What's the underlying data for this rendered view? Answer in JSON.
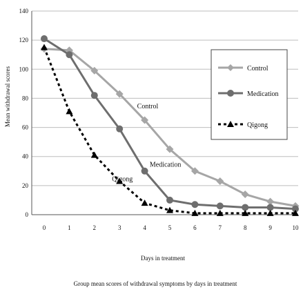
{
  "chart_data": {
    "type": "line",
    "ylabel": "Mean withdrawal scores",
    "xlabel": "Days in treatment",
    "caption": "Group mean scores of withdrawal symptoms by days in treatment",
    "x": [
      0,
      1,
      2,
      3,
      4,
      5,
      6,
      7,
      8,
      9,
      10
    ],
    "xticks": [
      "0",
      "1",
      "2",
      "3",
      "4",
      "5",
      "6",
      "7",
      "8",
      "9",
      "10"
    ],
    "yticks": [
      "0",
      "20",
      "40",
      "60",
      "80",
      "100",
      "120",
      "140"
    ],
    "ylim": [
      0,
      140
    ],
    "grid": true,
    "legend_position": "right",
    "series": [
      {
        "name": "Control",
        "color": "#a6a6a6",
        "marker": "diamond",
        "line_style": "solid",
        "values": [
          114,
          113,
          99,
          83,
          65,
          45,
          30,
          23,
          14,
          9,
          6
        ],
        "annotation": "Control"
      },
      {
        "name": "Medication",
        "color": "#6e6e6e",
        "marker": "circle",
        "line_style": "solid",
        "values": [
          121,
          110,
          82,
          59,
          30,
          10,
          7,
          6,
          5,
          5,
          4
        ],
        "annotation": "Medication"
      },
      {
        "name": "Qigong",
        "color": "#000000",
        "marker": "triangle",
        "line_style": "dotted",
        "values": [
          115,
          71,
          41,
          23,
          8,
          3,
          1,
          1,
          1,
          1,
          1
        ],
        "annotation": "Qigong"
      }
    ]
  }
}
